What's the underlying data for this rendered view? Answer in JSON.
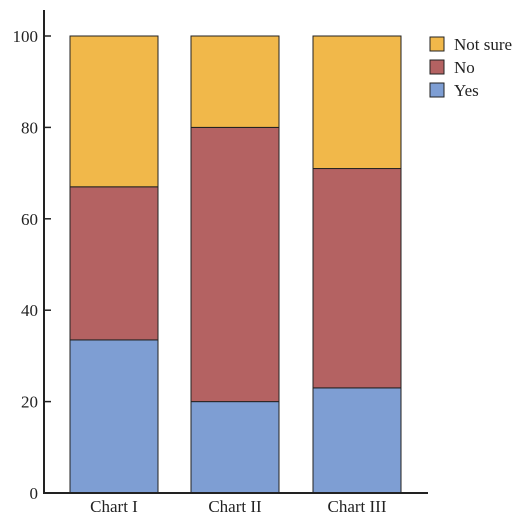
{
  "chart_data": {
    "type": "bar",
    "stacked": true,
    "categories": [
      "Chart I",
      "Chart II",
      "Chart III"
    ],
    "series": [
      {
        "name": "Yes",
        "color": "#7e9ed3",
        "values": [
          33.5,
          20,
          23
        ]
      },
      {
        "name": "No",
        "color": "#b46262",
        "values": [
          33.5,
          60,
          48
        ]
      },
      {
        "name": "Not sure",
        "color": "#f1b84a",
        "values": [
          33,
          20,
          29
        ]
      }
    ],
    "legend_order": [
      "Not sure",
      "No",
      "Yes"
    ],
    "legend_position": "top-right",
    "y_ticks": [
      "0",
      "20",
      "40",
      "60",
      "80",
      "100"
    ],
    "ylim": [
      0,
      100
    ],
    "title": "",
    "xlabel": "",
    "ylabel": "",
    "grid": false
  }
}
